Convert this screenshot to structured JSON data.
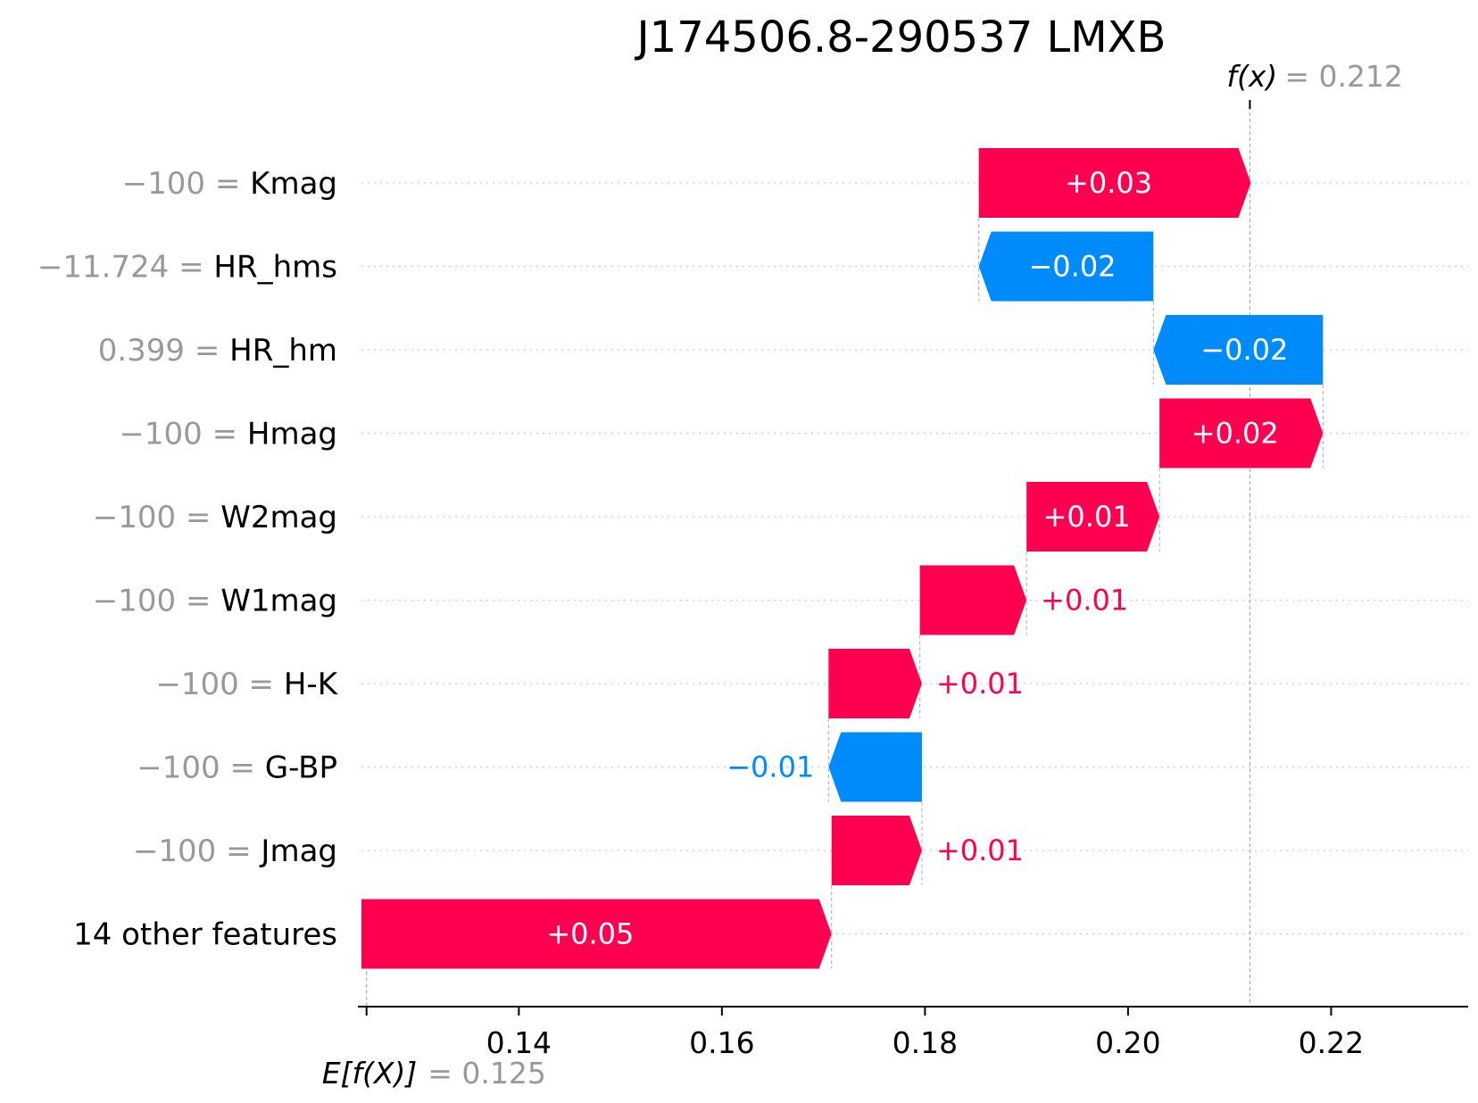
{
  "chart_data": {
    "type": "waterfall",
    "title": "J174506.8-290537 LMXB",
    "xlim": [
      0.1245,
      0.2335
    ],
    "x_ticks": [
      {
        "value": 0.14,
        "label": "0.14"
      },
      {
        "value": 0.16,
        "label": "0.16"
      },
      {
        "value": 0.18,
        "label": "0.18"
      },
      {
        "value": 0.2,
        "label": "0.20"
      },
      {
        "value": 0.22,
        "label": "0.22"
      }
    ],
    "base_value": {
      "value": 0.125,
      "label": "E[f(X)]",
      "value_text": "= 0.125"
    },
    "output_value": {
      "value": 0.212,
      "label": "f(x)",
      "value_text": "= 0.212"
    },
    "bars": [
      {
        "feature": "Kmag",
        "feature_value": "−100",
        "start": 0.1853,
        "end": 0.2121,
        "label": "+0.03"
      },
      {
        "feature": "HR_hms",
        "feature_value": "−11.724",
        "start": 0.2025,
        "end": 0.1853,
        "label": "−0.02"
      },
      {
        "feature": "HR_hm",
        "feature_value": "0.399",
        "start": 0.2192,
        "end": 0.2025,
        "label": "−0.02"
      },
      {
        "feature": "Hmag",
        "feature_value": "−100",
        "start": 0.2031,
        "end": 0.2192,
        "label": "+0.02"
      },
      {
        "feature": "W2mag",
        "feature_value": "−100",
        "start": 0.19,
        "end": 0.2031,
        "label": "+0.01"
      },
      {
        "feature": "W1mag",
        "feature_value": "−100",
        "start": 0.1795,
        "end": 0.19,
        "label": "+0.01"
      },
      {
        "feature": "H-K",
        "feature_value": "−100",
        "start": 0.1705,
        "end": 0.1797,
        "label": "+0.01"
      },
      {
        "feature": "G-BP",
        "feature_value": "−100",
        "start": 0.1797,
        "end": 0.1705,
        "label": "−0.01"
      },
      {
        "feature": "Jmag",
        "feature_value": "−100",
        "start": 0.1708,
        "end": 0.1797,
        "label": "+0.01"
      },
      {
        "feature": "14 other features",
        "feature_value": "",
        "start": 0.1245,
        "end": 0.1708,
        "label": "+0.05"
      }
    ],
    "colors": {
      "positive": "#ff0051",
      "negative": "#008bfb",
      "value_text": "#999999",
      "gridline": "#cccccc"
    }
  }
}
